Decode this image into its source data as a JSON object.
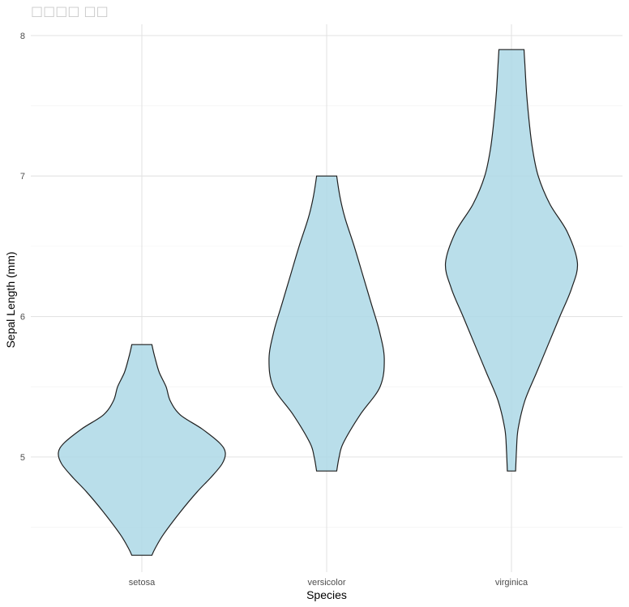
{
  "chart_data": {
    "type": "violin",
    "title": "□□□□ □□",
    "xlabel": "Species",
    "ylabel": "Sepal Length (mm)",
    "categories": [
      "setosa",
      "versicolor",
      "virginica"
    ],
    "ylim": [
      4.18,
      8.08
    ],
    "yticks": [
      5,
      6,
      7,
      8
    ],
    "yticks_minor": [
      4.5,
      5.5,
      6.5,
      7.5
    ],
    "grid": true,
    "fill_color": "#add8e6",
    "outline_color": "#1f1f1f",
    "violins": [
      {
        "category": "setosa",
        "min": 4.3,
        "max": 5.8,
        "density": [
          [
            4.3,
            0.12
          ],
          [
            4.35,
            0.16
          ],
          [
            4.45,
            0.26
          ],
          [
            4.6,
            0.45
          ],
          [
            4.75,
            0.66
          ],
          [
            4.85,
            0.82
          ],
          [
            4.95,
            0.96
          ],
          [
            5.03,
            1.0
          ],
          [
            5.1,
            0.93
          ],
          [
            5.2,
            0.72
          ],
          [
            5.3,
            0.46
          ],
          [
            5.4,
            0.34
          ],
          [
            5.5,
            0.29
          ],
          [
            5.6,
            0.21
          ],
          [
            5.7,
            0.16
          ],
          [
            5.8,
            0.12
          ]
        ]
      },
      {
        "category": "versicolor",
        "min": 4.9,
        "max": 7.0,
        "density": [
          [
            4.9,
            0.12
          ],
          [
            5.0,
            0.15
          ],
          [
            5.1,
            0.2
          ],
          [
            5.3,
            0.4
          ],
          [
            5.5,
            0.64
          ],
          [
            5.7,
            0.69
          ],
          [
            5.9,
            0.63
          ],
          [
            6.1,
            0.53
          ],
          [
            6.3,
            0.43
          ],
          [
            6.5,
            0.33
          ],
          [
            6.7,
            0.22
          ],
          [
            6.85,
            0.16
          ],
          [
            7.0,
            0.12
          ]
        ]
      },
      {
        "category": "virginica",
        "min": 4.9,
        "max": 7.9,
        "density": [
          [
            4.9,
            0.05
          ],
          [
            5.05,
            0.06
          ],
          [
            5.2,
            0.08
          ],
          [
            5.4,
            0.16
          ],
          [
            5.6,
            0.3
          ],
          [
            5.8,
            0.44
          ],
          [
            6.0,
            0.58
          ],
          [
            6.2,
            0.72
          ],
          [
            6.38,
            0.79
          ],
          [
            6.6,
            0.67
          ],
          [
            6.8,
            0.46
          ],
          [
            7.0,
            0.32
          ],
          [
            7.2,
            0.25
          ],
          [
            7.4,
            0.21
          ],
          [
            7.6,
            0.18
          ],
          [
            7.8,
            0.16
          ],
          [
            7.9,
            0.15
          ]
        ]
      }
    ]
  }
}
